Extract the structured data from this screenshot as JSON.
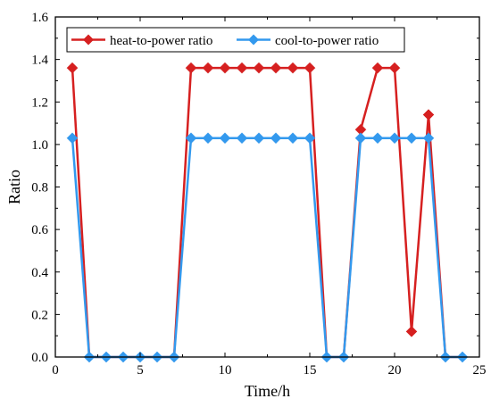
{
  "chart_data": {
    "type": "line",
    "title": "",
    "xlabel": "Time/h",
    "ylabel": "Ratio",
    "xlim": [
      0,
      25
    ],
    "ylim": [
      0,
      1.6
    ],
    "xticks": [
      0,
      5,
      10,
      15,
      20,
      25
    ],
    "yticks": [
      0.0,
      0.2,
      0.4,
      0.6,
      0.8,
      1.0,
      1.2,
      1.4,
      1.6
    ],
    "xtick_labels": [
      "0",
      "5",
      "10",
      "15",
      "20",
      "25"
    ],
    "ytick_labels": [
      "0.0",
      "0.2",
      "0.4",
      "0.6",
      "0.8",
      "1.0",
      "1.2",
      "1.4",
      "1.6"
    ],
    "grid": false,
    "legend_position": "top",
    "series": [
      {
        "name": "heat-to-power ratio",
        "color": "#d62020",
        "marker": "diamond",
        "x": [
          1,
          2,
          3,
          4,
          5,
          6,
          7,
          8,
          9,
          10,
          11,
          12,
          13,
          14,
          15,
          16,
          17,
          18,
          19,
          20,
          21,
          22,
          23,
          24
        ],
        "y": [
          1.36,
          0,
          0,
          0,
          0,
          0,
          0,
          1.36,
          1.36,
          1.36,
          1.36,
          1.36,
          1.36,
          1.36,
          1.36,
          0,
          0,
          1.07,
          1.36,
          1.36,
          0.12,
          1.14,
          0,
          0
        ]
      },
      {
        "name": "cool-to-power ratio",
        "color": "#3399ee",
        "marker": "diamond",
        "x": [
          1,
          2,
          3,
          4,
          5,
          6,
          7,
          8,
          9,
          10,
          11,
          12,
          13,
          14,
          15,
          16,
          17,
          18,
          19,
          20,
          21,
          22,
          23,
          24
        ],
        "y": [
          1.03,
          0,
          0,
          0,
          0,
          0,
          0,
          1.03,
          1.03,
          1.03,
          1.03,
          1.03,
          1.03,
          1.03,
          1.03,
          0,
          0,
          1.03,
          1.03,
          1.03,
          1.03,
          1.03,
          0,
          0
        ]
      }
    ]
  }
}
